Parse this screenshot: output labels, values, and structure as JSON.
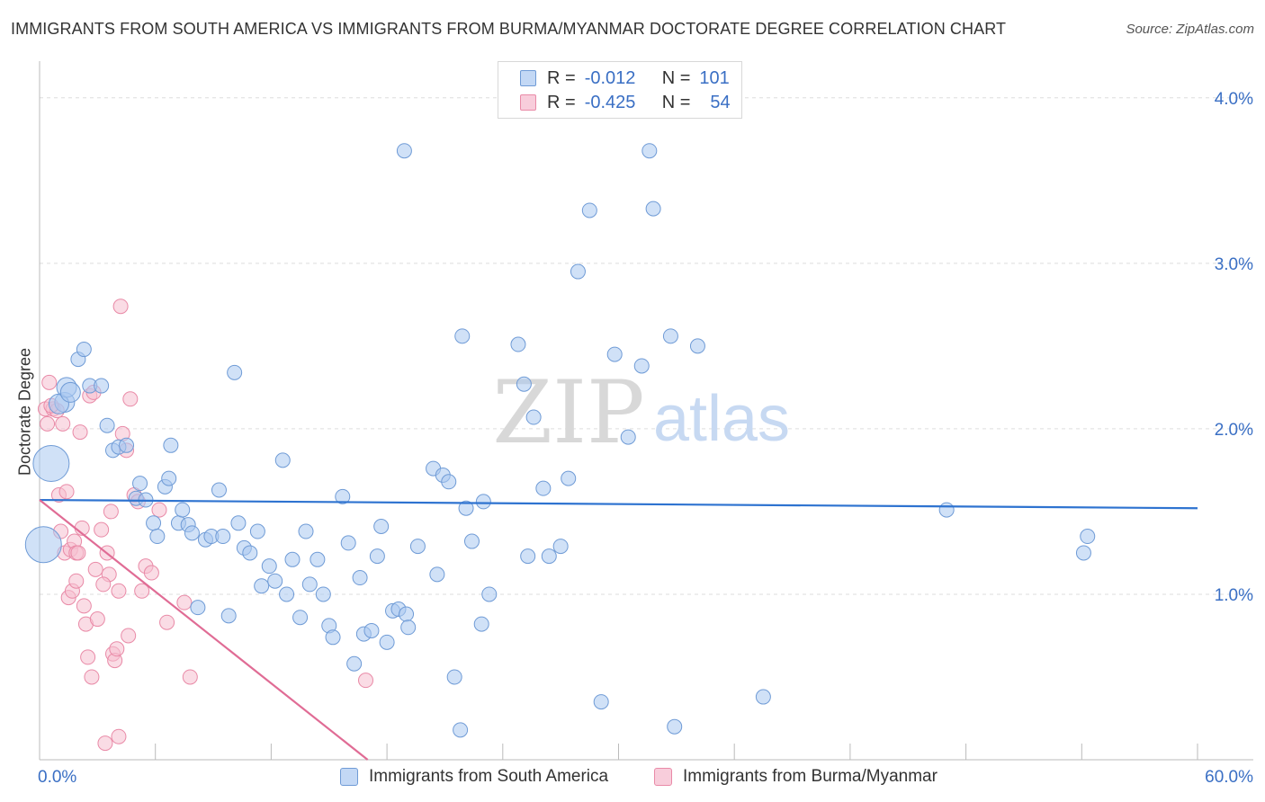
{
  "title": "IMMIGRANTS FROM SOUTH AMERICA VS IMMIGRANTS FROM BURMA/MYANMAR DOCTORATE DEGREE CORRELATION CHART",
  "source": "Source: ZipAtlas.com",
  "watermark": {
    "zip": "ZIP",
    "atlas": "atlas"
  },
  "legend": {
    "rows": [
      {
        "r_label": "R =",
        "r_value": "-0.012",
        "n_label": "N =",
        "n_value": "101"
      },
      {
        "r_label": "R =",
        "r_value": "-0.425",
        "n_label": "N =",
        "n_value": "54"
      }
    ]
  },
  "bottom_legend": [
    "Immigrants from South America",
    "Immigrants from Burma/Myanmar"
  ],
  "colors": {
    "blue_fill": "#aac8f0",
    "blue_stroke": "#6f9bd6",
    "blue_line": "#2e73d0",
    "pink_fill": "#f6bfd0",
    "pink_stroke": "#e98aa7",
    "pink_line": "#e06c95",
    "tick_label": "#3a6fc4",
    "grid": "#dddddd"
  },
  "chart_data": {
    "type": "scatter",
    "title": "IMMIGRANTS FROM SOUTH AMERICA VS IMMIGRANTS FROM BURMA/MYANMAR DOCTORATE DEGREE CORRELATION CHART",
    "xlabel": "",
    "ylabel": "Doctorate Degree",
    "xlim": [
      0,
      60
    ],
    "ylim": [
      0,
      4.2
    ],
    "x_tick_labels": [
      "0.0%",
      "60.0%"
    ],
    "y_ticks": [
      1,
      2,
      3,
      4
    ],
    "y_tick_labels": [
      "1.0%",
      "2.0%",
      "3.0%",
      "4.0%"
    ],
    "grid": true,
    "legend_position": "top-center",
    "series": [
      {
        "name": "Immigrants from South America",
        "color": "#6f9bd6",
        "r": -0.012,
        "n": 101,
        "trend": [
          [
            0,
            1.57
          ],
          [
            60,
            1.52
          ]
        ],
        "points": [
          [
            1.3,
            2.16
          ],
          [
            1.0,
            2.15
          ],
          [
            1.4,
            2.25
          ],
          [
            1.6,
            2.22
          ],
          [
            0.6,
            1.79
          ],
          [
            0.2,
            1.3
          ],
          [
            2.0,
            2.42
          ],
          [
            2.3,
            2.48
          ],
          [
            2.6,
            2.26
          ],
          [
            3.2,
            2.26
          ],
          [
            3.5,
            2.02
          ],
          [
            3.8,
            1.87
          ],
          [
            4.1,
            1.89
          ],
          [
            4.5,
            1.9
          ],
          [
            5.0,
            1.58
          ],
          [
            5.2,
            1.67
          ],
          [
            5.5,
            1.57
          ],
          [
            5.9,
            1.43
          ],
          [
            6.1,
            1.35
          ],
          [
            6.5,
            1.65
          ],
          [
            6.7,
            1.7
          ],
          [
            6.8,
            1.9
          ],
          [
            7.2,
            1.43
          ],
          [
            7.4,
            1.51
          ],
          [
            7.7,
            1.42
          ],
          [
            7.9,
            1.37
          ],
          [
            8.2,
            0.92
          ],
          [
            8.6,
            1.33
          ],
          [
            8.9,
            1.35
          ],
          [
            9.3,
            1.63
          ],
          [
            9.5,
            1.35
          ],
          [
            9.8,
            0.87
          ],
          [
            10.1,
            2.34
          ],
          [
            10.3,
            1.43
          ],
          [
            10.6,
            1.28
          ],
          [
            10.9,
            1.25
          ],
          [
            11.3,
            1.38
          ],
          [
            11.5,
            1.05
          ],
          [
            11.9,
            1.17
          ],
          [
            12.2,
            1.08
          ],
          [
            12.6,
            1.81
          ],
          [
            12.8,
            1.0
          ],
          [
            13.1,
            1.21
          ],
          [
            13.5,
            0.86
          ],
          [
            13.8,
            1.38
          ],
          [
            14.0,
            1.06
          ],
          [
            14.4,
            1.21
          ],
          [
            14.7,
            1.0
          ],
          [
            15.0,
            0.81
          ],
          [
            15.2,
            0.74
          ],
          [
            15.7,
            1.59
          ],
          [
            16.0,
            1.31
          ],
          [
            16.3,
            0.58
          ],
          [
            16.6,
            1.1
          ],
          [
            16.8,
            0.76
          ],
          [
            17.2,
            0.78
          ],
          [
            17.5,
            1.23
          ],
          [
            17.7,
            1.41
          ],
          [
            18.0,
            0.71
          ],
          [
            18.3,
            0.9
          ],
          [
            18.6,
            0.91
          ],
          [
            18.9,
            3.68
          ],
          [
            19.0,
            0.88
          ],
          [
            19.1,
            0.8
          ],
          [
            19.6,
            1.29
          ],
          [
            20.4,
            1.76
          ],
          [
            20.6,
            1.12
          ],
          [
            20.9,
            1.72
          ],
          [
            21.2,
            1.68
          ],
          [
            21.5,
            0.5
          ],
          [
            21.8,
            0.18
          ],
          [
            21.9,
            2.56
          ],
          [
            22.1,
            1.52
          ],
          [
            22.4,
            1.32
          ],
          [
            22.9,
            0.82
          ],
          [
            23.0,
            1.56
          ],
          [
            23.3,
            1.0
          ],
          [
            24.8,
            2.51
          ],
          [
            25.1,
            2.27
          ],
          [
            25.3,
            1.23
          ],
          [
            25.6,
            2.07
          ],
          [
            26.1,
            1.64
          ],
          [
            26.4,
            1.23
          ],
          [
            27.0,
            1.29
          ],
          [
            27.4,
            1.7
          ],
          [
            27.9,
            2.95
          ],
          [
            28.5,
            3.32
          ],
          [
            29.1,
            0.35
          ],
          [
            29.8,
            2.45
          ],
          [
            31.2,
            2.38
          ],
          [
            31.6,
            3.68
          ],
          [
            31.8,
            3.33
          ],
          [
            32.7,
            2.56
          ],
          [
            32.9,
            0.2
          ],
          [
            34.1,
            2.5
          ],
          [
            37.5,
            0.38
          ],
          [
            47.0,
            1.51
          ],
          [
            54.3,
            1.35
          ],
          [
            54.1,
            1.25
          ],
          [
            30.5,
            1.95
          ]
        ]
      },
      {
        "name": "Immigrants from Burma/Myanmar",
        "color": "#e98aa7",
        "r": -0.425,
        "n": 54,
        "trend": [
          [
            0,
            1.57
          ],
          [
            17,
            0.0
          ]
        ],
        "points": [
          [
            0.3,
            2.12
          ],
          [
            0.4,
            2.03
          ],
          [
            0.5,
            2.28
          ],
          [
            0.7,
            2.12
          ],
          [
            0.9,
            2.11
          ],
          [
            1.0,
            1.6
          ],
          [
            1.2,
            2.03
          ],
          [
            1.4,
            1.62
          ],
          [
            1.1,
            1.38
          ],
          [
            1.3,
            1.25
          ],
          [
            1.6,
            1.27
          ],
          [
            1.8,
            1.32
          ],
          [
            1.9,
            1.25
          ],
          [
            2.0,
            1.25
          ],
          [
            2.2,
            1.4
          ],
          [
            1.5,
            0.98
          ],
          [
            1.7,
            1.02
          ],
          [
            1.9,
            1.08
          ],
          [
            2.1,
            1.98
          ],
          [
            2.3,
            0.93
          ],
          [
            2.4,
            0.82
          ],
          [
            2.6,
            2.2
          ],
          [
            2.5,
            0.62
          ],
          [
            2.7,
            0.5
          ],
          [
            2.9,
            1.15
          ],
          [
            3.0,
            0.85
          ],
          [
            3.2,
            1.39
          ],
          [
            3.4,
            0.1
          ],
          [
            3.5,
            1.25
          ],
          [
            3.6,
            1.12
          ],
          [
            3.7,
            1.5
          ],
          [
            3.8,
            0.64
          ],
          [
            3.9,
            0.6
          ],
          [
            4.0,
            0.67
          ],
          [
            4.1,
            0.14
          ],
          [
            4.2,
            2.74
          ],
          [
            4.3,
            1.97
          ],
          [
            4.5,
            1.87
          ],
          [
            4.7,
            2.18
          ],
          [
            4.9,
            1.6
          ],
          [
            4.1,
            1.02
          ],
          [
            5.1,
            1.56
          ],
          [
            5.3,
            1.02
          ],
          [
            5.5,
            1.17
          ],
          [
            5.8,
            1.13
          ],
          [
            6.2,
            1.51
          ],
          [
            6.6,
            0.83
          ],
          [
            3.3,
            1.06
          ],
          [
            7.5,
            0.95
          ],
          [
            7.8,
            0.5
          ],
          [
            16.9,
            0.48
          ],
          [
            4.6,
            0.75
          ],
          [
            2.8,
            2.22
          ],
          [
            0.6,
            2.14
          ]
        ]
      }
    ]
  }
}
